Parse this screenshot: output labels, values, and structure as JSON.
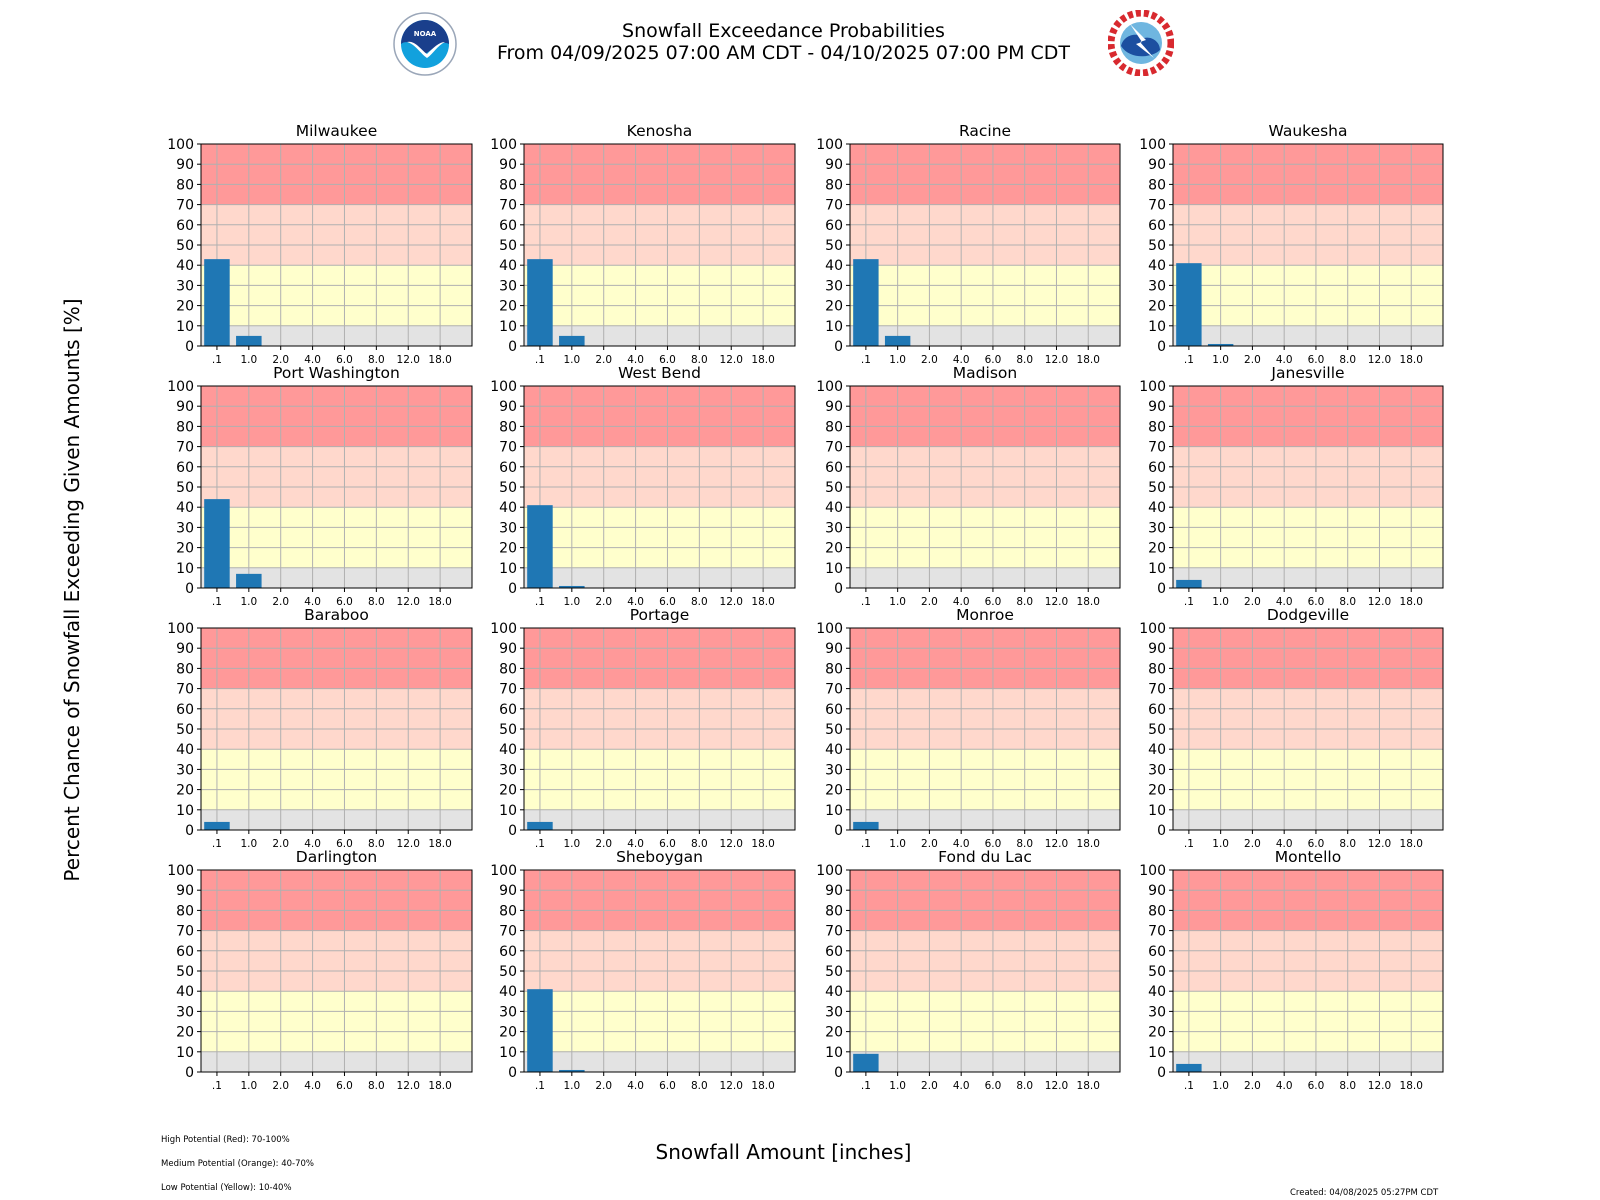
{
  "header": {
    "title_line1": "Snowfall Exceedance Probabilities",
    "title_line2": "From 04/09/2025 07:00 AM CDT - 04/10/2025 07:00 PM CDT",
    "left_logo": "noaa-logo",
    "right_logo": "nws-logo"
  },
  "footer": {
    "legend_notes": [
      "High Potential (Red): 70-100%",
      "Medium Potential (Orange): 40-70%",
      "Low Potential (Yellow): 10-40%"
    ],
    "created": "Created: 04/08/2025 05:27PM CDT"
  },
  "colors": {
    "bar": "#1f77b4",
    "high": "#ff9999",
    "medium": "#ffd8cc",
    "low": "#ffffcc",
    "none": "#e3e3e3",
    "grid": "#b0b0b0"
  },
  "chart_data": {
    "type": "bar",
    "title": "Snowfall Exceedance Probabilities",
    "subtitle": "From 04/09/2025 07:00 AM CDT - 04/10/2025 07:00 PM CDT",
    "xlabel": "Snowfall Amount [inches]",
    "ylabel": "Percent Chance of Snowfall Exceeding Given Amounts [%]",
    "categories": [
      ".1",
      "1.0",
      "2.0",
      "4.0",
      "6.0",
      "8.0",
      "12.0",
      "18.0"
    ],
    "ylim": [
      0,
      100
    ],
    "yticks": [
      0,
      10,
      20,
      30,
      40,
      50,
      60,
      70,
      80,
      90,
      100
    ],
    "grid": true,
    "bands": [
      {
        "name": "High Potential",
        "color": "red",
        "range": [
          70,
          100
        ]
      },
      {
        "name": "Medium Potential",
        "color": "orange",
        "range": [
          40,
          70
        ]
      },
      {
        "name": "Low Potential",
        "color": "yellow",
        "range": [
          10,
          40
        ]
      },
      {
        "name": "None",
        "color": "gray",
        "range": [
          0,
          10
        ]
      }
    ],
    "panels": [
      {
        "name": "Milwaukee",
        "values": [
          43,
          5,
          0,
          0,
          0,
          0,
          0,
          0
        ]
      },
      {
        "name": "Kenosha",
        "values": [
          43,
          5,
          0,
          0,
          0,
          0,
          0,
          0
        ]
      },
      {
        "name": "Racine",
        "values": [
          43,
          5,
          0,
          0,
          0,
          0,
          0,
          0
        ]
      },
      {
        "name": "Waukesha",
        "values": [
          41,
          1,
          0,
          0,
          0,
          0,
          0,
          0
        ]
      },
      {
        "name": "Port Washington",
        "values": [
          44,
          7,
          0,
          0,
          0,
          0,
          0,
          0
        ]
      },
      {
        "name": "West Bend",
        "values": [
          41,
          1,
          0,
          0,
          0,
          0,
          0,
          0
        ]
      },
      {
        "name": "Madison",
        "values": [
          0,
          0,
          0,
          0,
          0,
          0,
          0,
          0
        ]
      },
      {
        "name": "Janesville",
        "values": [
          4,
          0,
          0,
          0,
          0,
          0,
          0,
          0
        ]
      },
      {
        "name": "Baraboo",
        "values": [
          4,
          0,
          0,
          0,
          0,
          0,
          0,
          0
        ]
      },
      {
        "name": "Portage",
        "values": [
          4,
          0,
          0,
          0,
          0,
          0,
          0,
          0
        ]
      },
      {
        "name": "Monroe",
        "values": [
          4,
          0,
          0,
          0,
          0,
          0,
          0,
          0
        ]
      },
      {
        "name": "Dodgeville",
        "values": [
          0,
          0,
          0,
          0,
          0,
          0,
          0,
          0
        ]
      },
      {
        "name": "Darlington",
        "values": [
          0,
          0,
          0,
          0,
          0,
          0,
          0,
          0
        ]
      },
      {
        "name": "Sheboygan",
        "values": [
          41,
          1,
          0,
          0,
          0,
          0,
          0,
          0
        ]
      },
      {
        "name": "Fond du Lac",
        "values": [
          9,
          0,
          0,
          0,
          0,
          0,
          0,
          0
        ]
      },
      {
        "name": "Montello",
        "values": [
          4,
          0,
          0,
          0,
          0,
          0,
          0,
          0
        ]
      }
    ]
  }
}
